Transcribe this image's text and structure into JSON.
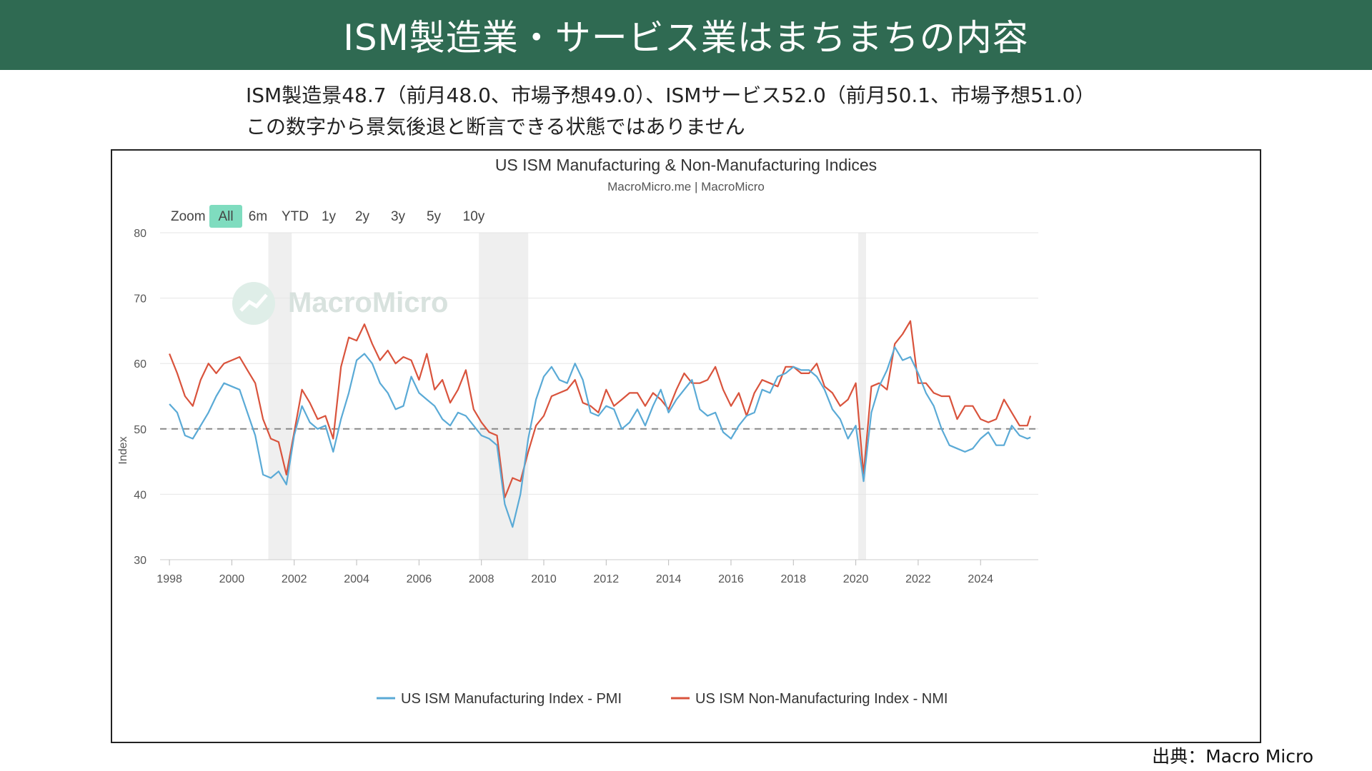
{
  "banner": {
    "title": "ISM製造業・サービス業はまちまちの内容"
  },
  "subtitle": {
    "line1": "ISM製造景48.7（前月48.0、市場予想49.0）、ISMサービス52.0（前月50.1、市場予想51.0）",
    "line2": "この数字から景気後退と断言できる状態ではありません"
  },
  "source": "出典：Macro Micro",
  "watermark": "MacroMicro",
  "zoom": {
    "label": "Zoom",
    "buttons": [
      "All",
      "6m",
      "YTD",
      "1y",
      "2y",
      "3y",
      "5y",
      "10y"
    ],
    "selected": "All"
  },
  "colors": {
    "banner": "#2f6a52",
    "pmi": "#5aaad6",
    "nmi": "#d9533c",
    "recession": "#efefef",
    "zoom_active": "#7fdcbf"
  },
  "chart_data": {
    "type": "line",
    "title": "US ISM Manufacturing & Non-Manufacturing Indices",
    "subtitle": "MacroMicro.me | MacroMicro",
    "ylabel": "Index",
    "ylim": [
      30,
      80
    ],
    "yticks": [
      30,
      40,
      50,
      60,
      70,
      80
    ],
    "xlim": [
      1997.7,
      2025.85
    ],
    "xticks": [
      1998,
      2000,
      2002,
      2004,
      2006,
      2008,
      2010,
      2012,
      2014,
      2016,
      2018,
      2020,
      2022,
      2024
    ],
    "reference_line": 50,
    "recessions": [
      [
        2001.17,
        2001.92
      ],
      [
        2007.92,
        2009.5
      ],
      [
        2020.08,
        2020.33
      ]
    ],
    "legend_position": "bottom",
    "series": [
      {
        "name": "US ISM Manufacturing Index - PMI",
        "x": [
          1998.0,
          1998.25,
          1998.5,
          1998.75,
          1999.0,
          1999.25,
          1999.5,
          1999.75,
          2000.0,
          2000.25,
          2000.5,
          2000.75,
          2001.0,
          2001.25,
          2001.5,
          2001.75,
          2002.0,
          2002.25,
          2002.5,
          2002.75,
          2003.0,
          2003.25,
          2003.5,
          2003.75,
          2004.0,
          2004.25,
          2004.5,
          2004.75,
          2005.0,
          2005.25,
          2005.5,
          2005.75,
          2006.0,
          2006.25,
          2006.5,
          2006.75,
          2007.0,
          2007.25,
          2007.5,
          2007.75,
          2008.0,
          2008.25,
          2008.5,
          2008.75,
          2009.0,
          2009.25,
          2009.5,
          2009.75,
          2010.0,
          2010.25,
          2010.5,
          2010.75,
          2011.0,
          2011.25,
          2011.5,
          2011.75,
          2012.0,
          2012.25,
          2012.5,
          2012.75,
          2013.0,
          2013.25,
          2013.5,
          2013.75,
          2014.0,
          2014.25,
          2014.5,
          2014.75,
          2015.0,
          2015.25,
          2015.5,
          2015.75,
          2016.0,
          2016.25,
          2016.5,
          2016.75,
          2017.0,
          2017.25,
          2017.5,
          2017.75,
          2018.0,
          2018.25,
          2018.5,
          2018.75,
          2019.0,
          2019.25,
          2019.5,
          2019.75,
          2020.0,
          2020.25,
          2020.5,
          2020.75,
          2021.0,
          2021.25,
          2021.5,
          2021.75,
          2022.0,
          2022.25,
          2022.5,
          2022.75,
          2023.0,
          2023.25,
          2023.5,
          2023.75,
          2024.0,
          2024.25,
          2024.5,
          2024.75,
          2025.0,
          2025.25,
          2025.5,
          2025.6
        ],
        "values": [
          53.8,
          52.5,
          49.0,
          48.5,
          50.5,
          52.5,
          55.0,
          57.0,
          56.5,
          56.0,
          52.5,
          49.0,
          43.0,
          42.5,
          43.5,
          41.5,
          49.0,
          53.5,
          51.0,
          50.0,
          50.5,
          46.5,
          51.5,
          55.5,
          60.5,
          61.5,
          60.0,
          57.0,
          55.5,
          53.0,
          53.5,
          58.0,
          55.5,
          54.5,
          53.5,
          51.5,
          50.5,
          52.5,
          52.0,
          50.5,
          49.0,
          48.5,
          47.5,
          38.5,
          35.0,
          40.0,
          48.5,
          54.5,
          58.0,
          59.5,
          57.5,
          57.0,
          60.0,
          57.5,
          52.5,
          52.0,
          53.5,
          53.0,
          50.0,
          51.0,
          53.0,
          50.5,
          53.5,
          56.0,
          52.5,
          54.5,
          56.0,
          57.5,
          53.0,
          52.0,
          52.5,
          49.5,
          48.5,
          50.5,
          52.0,
          52.5,
          56.0,
          55.5,
          58.0,
          58.5,
          59.5,
          59.0,
          59.0,
          58.0,
          56.0,
          53.0,
          51.5,
          48.5,
          50.5,
          42.0,
          52.5,
          56.5,
          59.0,
          62.5,
          60.5,
          61.0,
          58.5,
          55.5,
          53.5,
          50.0,
          47.5,
          47.0,
          46.5,
          47.0,
          48.5,
          49.5,
          47.5,
          47.5,
          50.5,
          49.0,
          48.5,
          48.7
        ],
        "latest": 48.7
      },
      {
        "name": "US ISM Non-Manufacturing Index - NMI",
        "x": [
          1998.0,
          1998.25,
          1998.5,
          1998.75,
          1999.0,
          1999.25,
          1999.5,
          1999.75,
          2000.0,
          2000.25,
          2000.5,
          2000.75,
          2001.0,
          2001.25,
          2001.5,
          2001.75,
          2002.0,
          2002.25,
          2002.5,
          2002.75,
          2003.0,
          2003.25,
          2003.5,
          2003.75,
          2004.0,
          2004.25,
          2004.5,
          2004.75,
          2005.0,
          2005.25,
          2005.5,
          2005.75,
          2006.0,
          2006.25,
          2006.5,
          2006.75,
          2007.0,
          2007.25,
          2007.5,
          2007.75,
          2008.0,
          2008.25,
          2008.5,
          2008.75,
          2009.0,
          2009.25,
          2009.5,
          2009.75,
          2010.0,
          2010.25,
          2010.5,
          2010.75,
          2011.0,
          2011.25,
          2011.5,
          2011.75,
          2012.0,
          2012.25,
          2012.5,
          2012.75,
          2013.0,
          2013.25,
          2013.5,
          2013.75,
          2014.0,
          2014.25,
          2014.5,
          2014.75,
          2015.0,
          2015.25,
          2015.5,
          2015.75,
          2016.0,
          2016.25,
          2016.5,
          2016.75,
          2017.0,
          2017.25,
          2017.5,
          2017.75,
          2018.0,
          2018.25,
          2018.5,
          2018.75,
          2019.0,
          2019.25,
          2019.5,
          2019.75,
          2020.0,
          2020.25,
          2020.5,
          2020.75,
          2021.0,
          2021.25,
          2021.5,
          2021.75,
          2022.0,
          2022.25,
          2022.5,
          2022.75,
          2023.0,
          2023.25,
          2023.5,
          2023.75,
          2024.0,
          2024.25,
          2024.5,
          2024.75,
          2025.0,
          2025.25,
          2025.5,
          2025.6
        ],
        "values": [
          61.5,
          58.5,
          55.0,
          53.5,
          57.5,
          60.0,
          58.5,
          60.0,
          60.5,
          61.0,
          59.0,
          57.0,
          51.5,
          48.5,
          48.0,
          43.0,
          49.5,
          56.0,
          54.0,
          51.5,
          52.0,
          48.5,
          59.5,
          64.0,
          63.5,
          66.0,
          63.0,
          60.5,
          62.0,
          60.0,
          61.0,
          60.5,
          57.5,
          61.5,
          56.0,
          57.5,
          54.0,
          56.0,
          59.0,
          53.0,
          51.0,
          49.5,
          49.0,
          39.5,
          42.5,
          42.0,
          46.5,
          50.5,
          52.0,
          55.0,
          55.5,
          56.0,
          57.5,
          54.0,
          53.5,
          52.5,
          56.0,
          53.5,
          54.5,
          55.5,
          55.5,
          53.5,
          55.5,
          54.5,
          53.0,
          56.0,
          58.5,
          57.0,
          57.0,
          57.5,
          59.5,
          56.0,
          53.5,
          55.5,
          52.0,
          55.5,
          57.5,
          57.0,
          56.5,
          59.5,
          59.5,
          58.5,
          58.5,
          60.0,
          56.5,
          55.5,
          53.5,
          54.5,
          57.0,
          43.0,
          56.5,
          57.0,
          56.0,
          63.0,
          64.5,
          66.5,
          57.0,
          57.0,
          55.5,
          55.0,
          55.0,
          51.5,
          53.5,
          53.5,
          51.5,
          51.0,
          51.5,
          54.5,
          52.5,
          50.5,
          50.5,
          52.0
        ],
        "latest": 52.0
      }
    ]
  }
}
